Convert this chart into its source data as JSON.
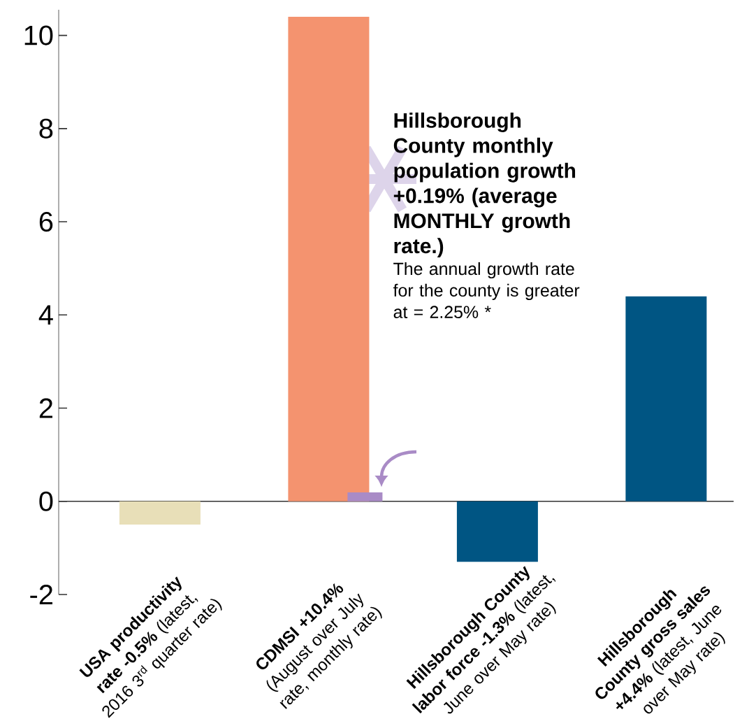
{
  "chart_data": {
    "type": "bar",
    "categories": [
      "**USA productivity rate -0.5%** (latest, 2016 3$^{rd}$ quarter rate)",
      "**CDMSI +10.4%** (August over July rate, monthly rate)",
      "**Hillsborough County labor force -1.3%** (latest, June over May rate)",
      "**Hillsborough County gross sales +4.4%** (latest, June over May rate)"
    ],
    "series": [
      {
        "values": [
          -0.5,
          10.4,
          -1.3,
          4.4
        ],
        "colors": [
          "#e8dfb8",
          "#f4936f",
          "#005583",
          "#005583"
        ]
      },
      {
        "values": [
          null,
          0.19,
          null,
          null
        ],
        "color": "#a98bc6"
      }
    ],
    "ylim": [
      -2,
      10.55
    ],
    "yticks": [
      -2,
      0,
      2,
      4,
      6,
      8,
      10
    ],
    "annotations": [
      "Hillsborough County monthly population growth +0.19% (average MONTHLY growth rate.)",
      "The annual growth rate for the county is greater at = 2.25% *"
    ]
  }
}
